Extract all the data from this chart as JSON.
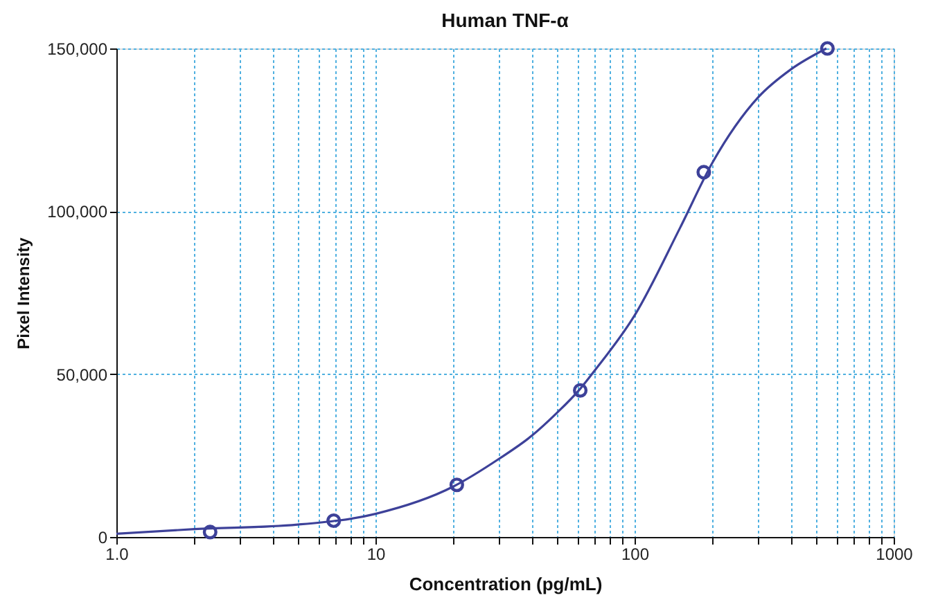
{
  "chart_data": {
    "type": "scatter",
    "title": "Human TNF-α",
    "xlabel": "Concentration (pg/mL)",
    "ylabel": "Pixel Intensity",
    "log": "x",
    "grid": true,
    "xlim": [
      1,
      1000
    ],
    "ylim": [
      0,
      150000
    ],
    "xticks": [
      {
        "value": 1,
        "label": "1.0"
      },
      {
        "value": 2,
        "label": null
      },
      {
        "value": 3,
        "label": null
      },
      {
        "value": 4,
        "label": null
      },
      {
        "value": 5,
        "label": null
      },
      {
        "value": 6,
        "label": null
      },
      {
        "value": 7,
        "label": null
      },
      {
        "value": 8,
        "label": null
      },
      {
        "value": 9,
        "label": null
      },
      10,
      {
        "value": 20,
        "label": null
      },
      {
        "value": 30,
        "label": null
      },
      {
        "value": 40,
        "label": null
      },
      {
        "value": 50,
        "label": null
      },
      {
        "value": 60,
        "label": null
      },
      {
        "value": 70,
        "label": null
      },
      {
        "value": 80,
        "label": null
      },
      {
        "value": 90,
        "label": null
      },
      100,
      {
        "value": 200,
        "label": null
      },
      {
        "value": 300,
        "label": null
      },
      {
        "value": 400,
        "label": null
      },
      {
        "value": 500,
        "label": null
      },
      {
        "value": 600,
        "label": null
      },
      {
        "value": 700,
        "label": null
      },
      {
        "value": 800,
        "label": null
      },
      {
        "value": 900,
        "label": null
      },
      1000
    ],
    "yticks": [
      {
        "value": 0,
        "label": "0"
      },
      {
        "value": 50000,
        "label": "50,000"
      },
      {
        "value": 100000,
        "label": "100,000"
      },
      {
        "value": 150000,
        "label": "150,000"
      }
    ],
    "series": [
      {
        "type": "line",
        "marker": "none",
        "line_style": "solid",
        "color": "#3d4199",
        "x": [
          1,
          2,
          5,
          10,
          20,
          30,
          40,
          50,
          61.7,
          70,
          100,
          150,
          200,
          300,
          400,
          550
        ],
        "values": [
          1000,
          2400,
          3800,
          7100,
          15500,
          24000,
          31000,
          38000,
          45500,
          51000,
          68000,
          95000,
          115000,
          135000,
          143500,
          150000
        ]
      },
      {
        "marker": "circle",
        "color": "#3d4199",
        "x": [
          2.3,
          6.9,
          20.6,
          61.7,
          185,
          555
        ],
        "values": [
          1500,
          5000,
          16000,
          45000,
          112000,
          150000
        ]
      }
    ]
  }
}
